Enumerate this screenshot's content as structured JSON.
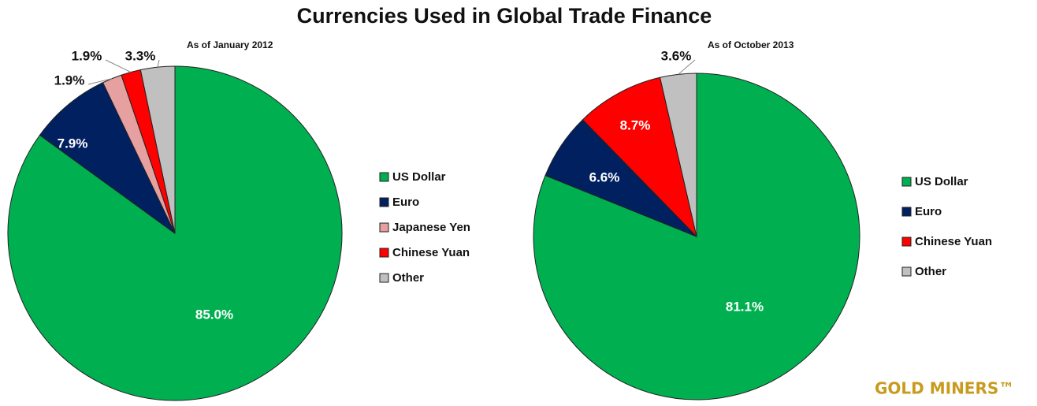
{
  "title": "Currencies Used in Global Trade Finance",
  "logo": "GOLD MINERS™",
  "chart_data": [
    {
      "type": "pie",
      "subtitle": "As of January 2012",
      "categories": [
        "US Dollar",
        "Euro",
        "Japanese  Yen",
        "Chinese Yuan",
        "Other"
      ],
      "values": [
        85.0,
        7.9,
        1.9,
        1.9,
        3.3
      ],
      "value_labels": [
        "85.0%",
        "7.9%",
        "1.9%",
        "1.9%",
        "3.3%"
      ],
      "colors": [
        "#00b050",
        "#002060",
        "#e6a0a0",
        "#ff0000",
        "#c0c0c0"
      ]
    },
    {
      "type": "pie",
      "subtitle": "As of October 2013",
      "categories": [
        "US Dollar",
        "Euro",
        "Chinese Yuan",
        "Other"
      ],
      "values": [
        81.1,
        6.6,
        8.7,
        3.6
      ],
      "value_labels": [
        "81.1%",
        "6.6%",
        "8.7%",
        "3.6%"
      ],
      "colors": [
        "#00b050",
        "#002060",
        "#ff0000",
        "#c0c0c0"
      ]
    }
  ]
}
